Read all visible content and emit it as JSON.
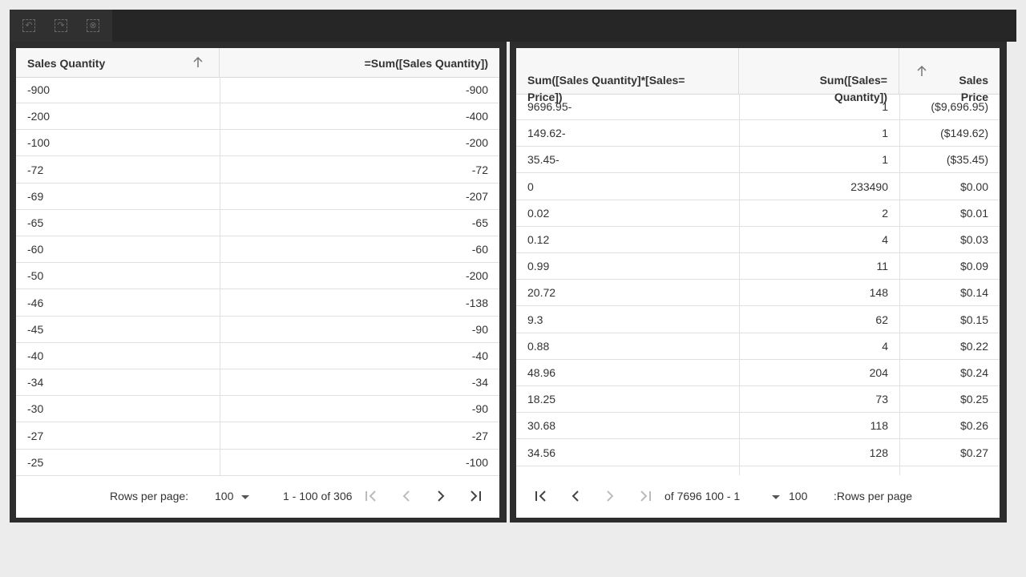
{
  "toolbar": {
    "icons": [
      "undo-icon",
      "redo-icon",
      "clear-selection-icon"
    ]
  },
  "left_table": {
    "headers": [
      "Sales Quantity",
      "=Sum([Sales Quantity])"
    ],
    "rows": [
      [
        "-900",
        "-900"
      ],
      [
        "-200",
        "-400"
      ],
      [
        "-100",
        "-200"
      ],
      [
        "-72",
        "-72"
      ],
      [
        "-69",
        "-207"
      ],
      [
        "-65",
        "-65"
      ],
      [
        "-60",
        "-60"
      ],
      [
        "-50",
        "-200"
      ],
      [
        "-46",
        "-138"
      ],
      [
        "-45",
        "-90"
      ],
      [
        "-40",
        "-40"
      ],
      [
        "-34",
        "-34"
      ],
      [
        "-30",
        "-90"
      ],
      [
        "-27",
        "-27"
      ],
      [
        "-25",
        "-100"
      ]
    ],
    "footer": {
      "rows_per_page_label": "Rows per page:",
      "rows_per_page": "100",
      "range": "1 - 100 of 306"
    }
  },
  "right_table": {
    "headers": [
      "Sum([Sales Quantity]*[Sales=\nPrice])",
      "Sum([Sales=\nQuantity])",
      "Sales\nPrice"
    ],
    "rows": [
      [
        "9696.95-",
        "1",
        "($9,696.95)"
      ],
      [
        "149.62-",
        "1",
        "($149.62)"
      ],
      [
        "35.45-",
        "1",
        "($35.45)"
      ],
      [
        "0",
        "233490",
        "$0.00"
      ],
      [
        "0.02",
        "2",
        "$0.01"
      ],
      [
        "0.12",
        "4",
        "$0.03"
      ],
      [
        "0.99",
        "11",
        "$0.09"
      ],
      [
        "20.72",
        "148",
        "$0.14"
      ],
      [
        "9.3",
        "62",
        "$0.15"
      ],
      [
        "0.88",
        "4",
        "$0.22"
      ],
      [
        "48.96",
        "204",
        "$0.24"
      ],
      [
        "18.25",
        "73",
        "$0.25"
      ],
      [
        "30.68",
        "118",
        "$0.26"
      ],
      [
        "34.56",
        "128",
        "$0.27"
      ]
    ],
    "footer": {
      "range": "of 7696 100 - 1",
      "rows_per_page": "100",
      "rows_per_page_label": ":Rows per page"
    }
  }
}
